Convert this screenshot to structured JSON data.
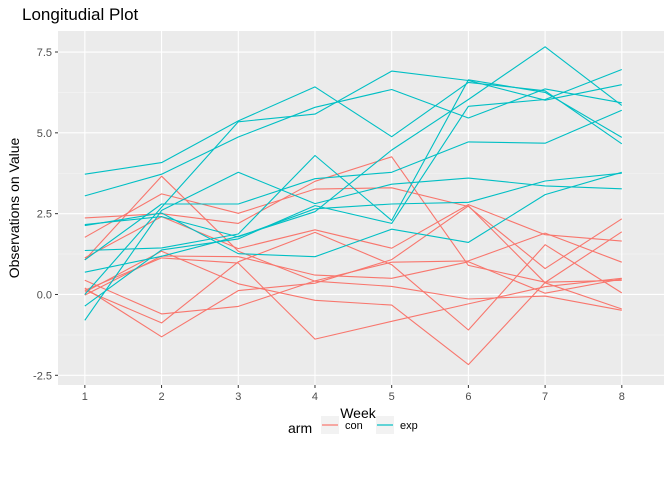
{
  "chart_data": {
    "type": "line",
    "title": "Longitudial Plot",
    "xlabel": "Week",
    "ylabel": "Observations on Value",
    "x": [
      1,
      2,
      3,
      4,
      5,
      6,
      7,
      8
    ],
    "xlim": [
      0.65,
      8.55
    ],
    "ylim": [
      -2.8,
      8.15
    ],
    "x_ticks": [
      "1",
      "2",
      "3",
      "4",
      "5",
      "6",
      "7",
      "8"
    ],
    "y_ticks": [
      -2.5,
      0.0,
      2.5,
      5.0,
      7.5
    ],
    "y_tick_labels": [
      "-2.5",
      "0.0",
      "2.5",
      "5.0",
      "7.5"
    ],
    "grid": true,
    "legend": {
      "title": "arm",
      "position": "bottom",
      "entries": [
        {
          "label": "con",
          "color": "#f8766d"
        },
        {
          "label": "exp",
          "color": "#00bfc4"
        }
      ]
    },
    "series": [
      {
        "group": "con",
        "values": [
          0.2,
          -1.31,
          0.12,
          0.35,
          1.08,
          2.74,
          0.36,
          -0.45
        ]
      },
      {
        "group": "con",
        "values": [
          1.13,
          2.41,
          1.42,
          2.0,
          1.43,
          2.78,
          1.85,
          1.65
        ]
      },
      {
        "group": "con",
        "values": [
          1.77,
          3.11,
          2.51,
          3.26,
          3.3,
          2.72,
          0.8,
          2.34
        ]
      },
      {
        "group": "con",
        "values": [
          0.44,
          -0.6,
          -0.37,
          0.42,
          1.0,
          1.04,
          1.9,
          1.0
        ]
      },
      {
        "group": "con",
        "values": [
          -0.02,
          1.19,
          1.17,
          0.6,
          0.5,
          1.01,
          0.04,
          0.48
        ]
      },
      {
        "group": "con",
        "values": [
          0.14,
          -0.88,
          1.01,
          1.92,
          0.92,
          -1.1,
          1.54,
          0.05
        ]
      },
      {
        "group": "con",
        "values": [
          0.13,
          1.13,
          0.97,
          -1.38,
          -0.83,
          -0.29,
          0.24,
          0.5
        ]
      },
      {
        "group": "con",
        "values": [
          2.37,
          2.5,
          2.2,
          3.5,
          4.26,
          0.9,
          0.38,
          0.44
        ]
      },
      {
        "group": "con",
        "values": [
          0.07,
          1.34,
          0.33,
          -0.18,
          -0.33,
          -2.17,
          0.37,
          1.94
        ]
      },
      {
        "group": "con",
        "values": [
          1.07,
          3.66,
          1.34,
          0.41,
          0.25,
          -0.14,
          -0.05,
          -0.49
        ]
      },
      {
        "group": "exp",
        "values": [
          3.05,
          3.72,
          4.87,
          5.79,
          6.34,
          5.46,
          6.36,
          5.93
        ]
      },
      {
        "group": "exp",
        "values": [
          3.72,
          4.08,
          5.37,
          6.42,
          4.88,
          6.56,
          6.3,
          4.66
        ]
      },
      {
        "group": "exp",
        "values": [
          2.16,
          2.41,
          1.78,
          2.65,
          2.8,
          2.85,
          3.51,
          3.75
        ]
      },
      {
        "group": "exp",
        "values": [
          1.07,
          2.8,
          2.8,
          3.58,
          3.78,
          4.72,
          4.68,
          5.7
        ]
      },
      {
        "group": "exp",
        "values": [
          0.69,
          1.18,
          1.8,
          2.56,
          4.47,
          6.03,
          7.66,
          5.85
        ]
      },
      {
        "group": "exp",
        "values": [
          -0.8,
          2.6,
          3.78,
          2.81,
          3.41,
          3.6,
          3.36,
          3.27
        ]
      },
      {
        "group": "exp",
        "values": [
          -0.36,
          1.38,
          1.72,
          2.75,
          2.2,
          5.82,
          6.03,
          6.96
        ]
      },
      {
        "group": "exp",
        "values": [
          1.36,
          1.44,
          1.87,
          4.3,
          2.29,
          6.64,
          6.25,
          4.86
        ]
      },
      {
        "group": "exp",
        "values": [
          2.13,
          2.52,
          1.26,
          1.17,
          2.02,
          1.61,
          3.09,
          3.78
        ]
      },
      {
        "group": "exp",
        "values": [
          0.0,
          2.7,
          5.34,
          5.58,
          6.91,
          6.62,
          6.01,
          6.49
        ]
      }
    ]
  }
}
